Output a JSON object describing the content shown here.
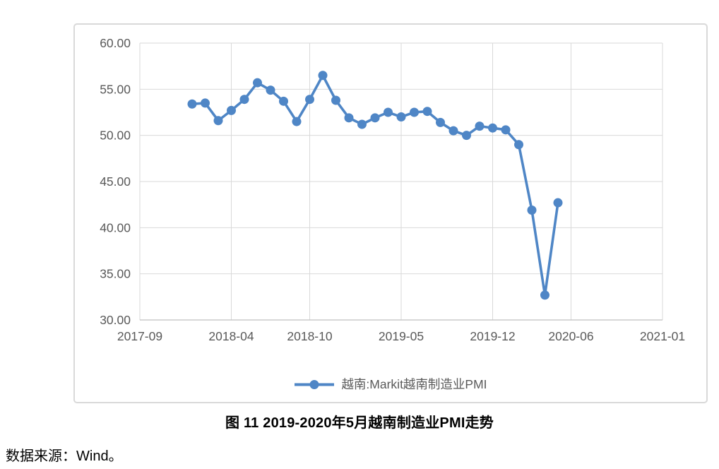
{
  "caption": "图 11 2019-2020年5月越南制造业PMI走势",
  "source_note": "数据来源：Wind。",
  "colors": {
    "line": "#4f86c6",
    "marker": "#4f86c6",
    "grid": "#d9d9d9",
    "axis_line": "#bfbfbf",
    "axis_text": "#595959",
    "frame_border": "#d9d9d9",
    "legend_text": "#595959"
  },
  "chart_data": {
    "type": "line",
    "title": "",
    "grid": true,
    "legend_position": "bottom",
    "x_axis": {
      "start": "2017-09",
      "end": "2021-01",
      "tick_labels": [
        "2017-09",
        "2018-04",
        "2018-10",
        "2019-05",
        "2019-12",
        "2020-06",
        "2021-01"
      ]
    },
    "y_axis": {
      "min": 30,
      "max": 60,
      "tick_labels": [
        "60.00",
        "55.00",
        "50.00",
        "45.00",
        "40.00",
        "35.00",
        "30.00"
      ]
    },
    "ylim": [
      30,
      60
    ],
    "series": [
      {
        "name": "越南:Markit越南制造业PMI",
        "x": [
          "2018-01",
          "2018-02",
          "2018-03",
          "2018-04",
          "2018-05",
          "2018-06",
          "2018-07",
          "2018-08",
          "2018-09",
          "2018-10",
          "2018-11",
          "2018-12",
          "2019-01",
          "2019-02",
          "2019-03",
          "2019-04",
          "2019-05",
          "2019-06",
          "2019-07",
          "2019-08",
          "2019-09",
          "2019-10",
          "2019-11",
          "2019-12",
          "2020-01",
          "2020-02",
          "2020-03",
          "2020-04",
          "2020-05"
        ],
        "values": [
          53.4,
          53.5,
          51.6,
          52.7,
          53.9,
          55.7,
          54.9,
          53.7,
          51.5,
          53.9,
          56.5,
          53.8,
          51.9,
          51.2,
          51.9,
          52.5,
          52.0,
          52.5,
          52.6,
          51.4,
          50.5,
          50.0,
          51.0,
          50.8,
          50.6,
          49.0,
          41.9,
          32.7,
          42.7
        ]
      }
    ]
  }
}
